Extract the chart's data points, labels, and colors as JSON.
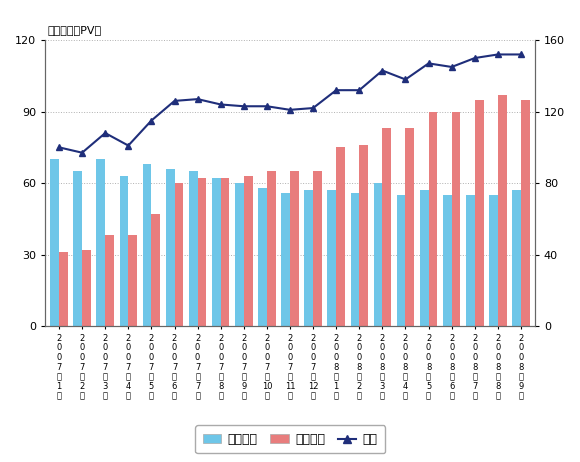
{
  "categories": [
    "2\n0\n0\n7\n年\n1\n月",
    "2\n0\n0\n7\n年\n2\n月",
    "2\n0\n0\n7\n年\n3\n月",
    "2\n0\n0\n7\n年\n4\n月",
    "2\n0\n0\n7\n年\n5\n月",
    "2\n0\n0\n7\n年\n6\n月",
    "2\n0\n0\n7\n年\n7\n月",
    "2\n0\n0\n7\n年\n8\n月",
    "2\n0\n0\n7\n年\n9\n月",
    "2\n0\n0\n7\n年\n10\n月",
    "2\n0\n0\n7\n年\n11\n月",
    "2\n0\n0\n7\n年\n12\n月",
    "2\n0\n0\n8\n年\n1\n月",
    "2\n0\n0\n8\n年\n2\n月",
    "2\n0\n0\n8\n年\n3\n月",
    "2\n0\n0\n8\n年\n4\n月",
    "2\n0\n0\n8\n年\n5\n月",
    "2\n0\n0\n8\n年\n6\n月",
    "2\n0\n0\n8\n年\n7\n月",
    "2\n0\n0\n8\n年\n8\n月",
    "2\n0\n0\n8\n年\n9\n月"
  ],
  "pc_values": [
    70,
    65,
    70,
    63,
    68,
    66,
    65,
    62,
    60,
    58,
    56,
    57,
    57,
    56,
    60,
    55,
    57,
    55,
    55,
    55,
    57
  ],
  "mobile_values": [
    31,
    32,
    38,
    38,
    47,
    60,
    62,
    62,
    63,
    65,
    65,
    65,
    75,
    76,
    83,
    83,
    90,
    90,
    95,
    97,
    95
  ],
  "total_values": [
    100,
    97,
    108,
    101,
    115,
    126,
    127,
    124,
    123,
    123,
    121,
    122,
    132,
    132,
    143,
    138,
    147,
    145,
    150,
    152,
    152
  ],
  "bar_color_pc": "#6ec6e8",
  "bar_color_mobile": "#e87d7d",
  "line_color": "#1f2e7a",
  "left_ylim": [
    0,
    120
  ],
  "right_ylim": [
    0,
    160
  ],
  "left_yticks": [
    0,
    30,
    60,
    90,
    120
  ],
  "right_yticks": [
    0,
    40,
    80,
    120,
    160
  ],
  "grid_color": "#b0b0b0",
  "ylabel_left": "（単位：億PV）",
  "legend_labels": [
    "パソコン",
    "モバイル",
    "合計"
  ],
  "bg_color": "#ffffff",
  "bar_width": 0.38
}
